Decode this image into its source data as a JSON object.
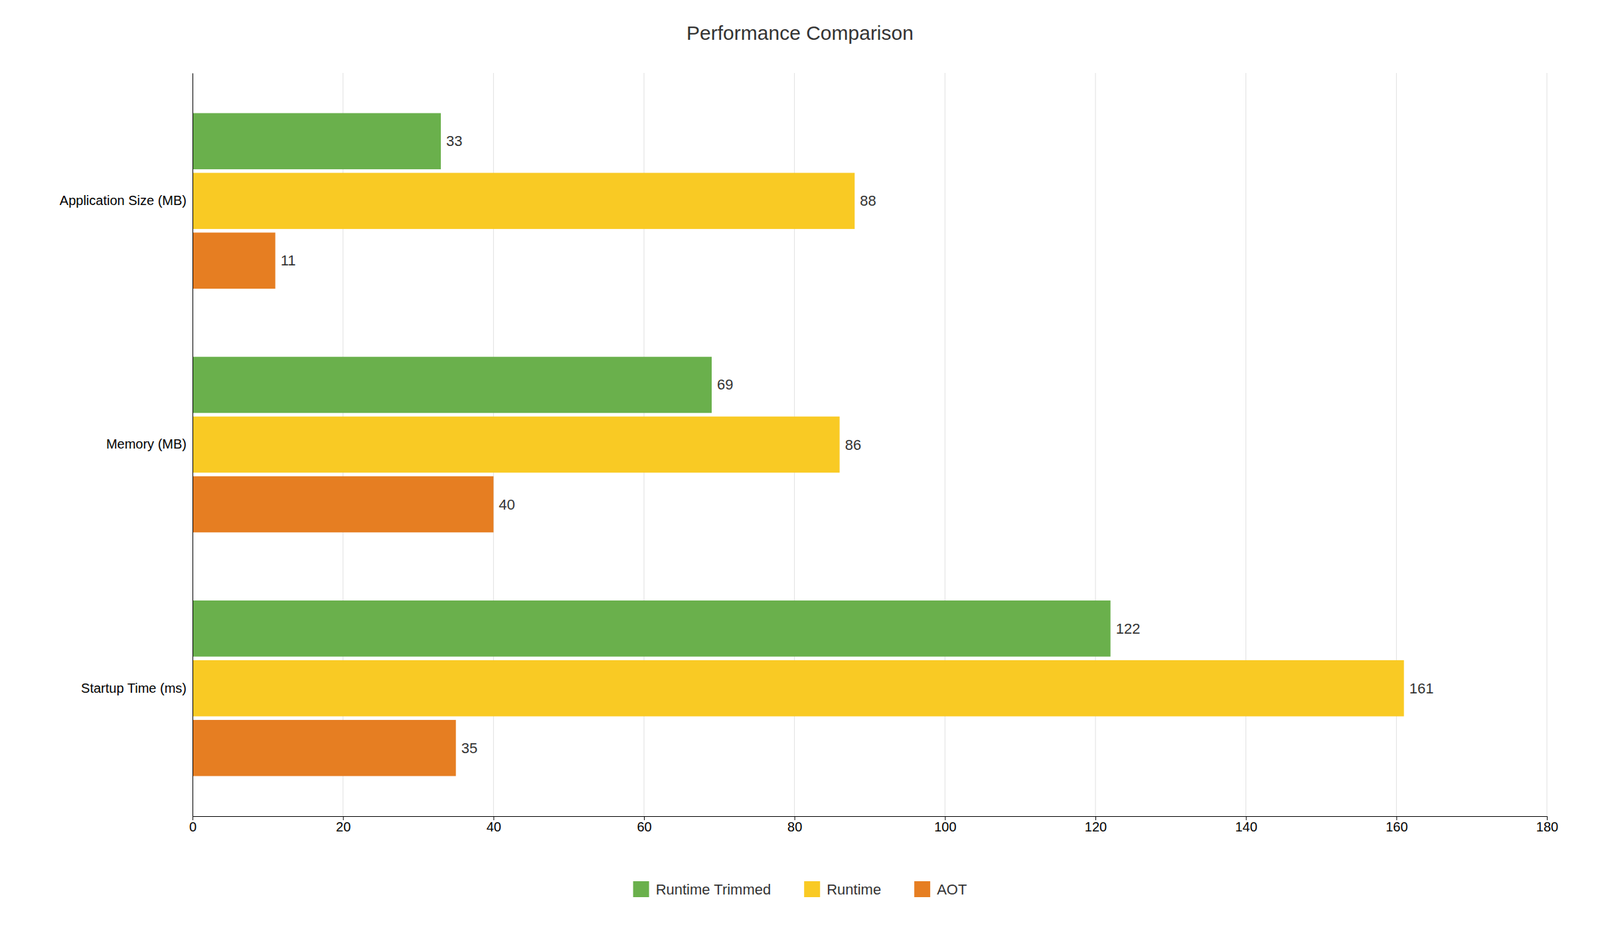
{
  "chart_data": {
    "type": "bar",
    "orientation": "horizontal",
    "title": "Performance Comparison",
    "categories": [
      "Application Size (MB)",
      "Memory (MB)",
      "Startup Time (ms)"
    ],
    "series": [
      {
        "name": "Runtime Trimmed",
        "values": [
          33,
          69,
          122
        ],
        "color": "#6ab04c"
      },
      {
        "name": "Runtime",
        "values": [
          88,
          86,
          161
        ],
        "color": "#f9ca24"
      },
      {
        "name": "AOT",
        "values": [
          11,
          40,
          35
        ],
        "color": "#e67e22"
      }
    ],
    "xlim": [
      0,
      180
    ],
    "xticks": [
      0,
      20,
      40,
      60,
      80,
      100,
      120,
      140,
      160,
      180
    ],
    "grid": true,
    "legend": "bottom",
    "data_labels": true
  }
}
